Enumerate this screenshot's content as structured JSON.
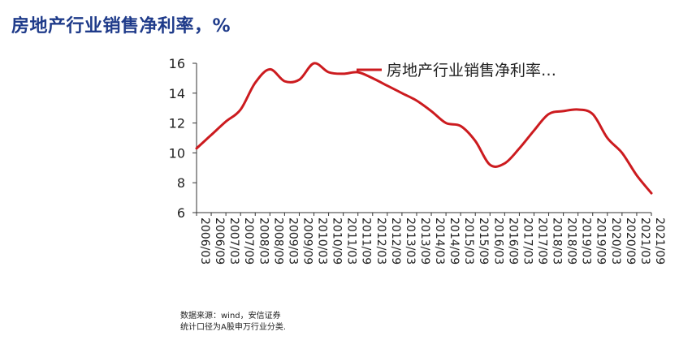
{
  "header": {
    "title": "房地产行业销售净利率，%"
  },
  "footnote": {
    "source": "数据来源：wind，安信证券",
    "note": "统计口径为A股申万行业分类."
  },
  "colors": {
    "line": "#cc1b1f",
    "title": "#1f3b8a",
    "axis": "#333333"
  },
  "chart_data": {
    "type": "line",
    "title": "房地产行业销售净利率，%",
    "xlabel": "",
    "ylabel": "",
    "ylim": [
      6,
      16
    ],
    "yticks": [
      6,
      8,
      10,
      12,
      14,
      16
    ],
    "grid": false,
    "legend_position": "top-right",
    "x": [
      "2006/03",
      "2006/09",
      "2007/03",
      "2007/09",
      "2008/03",
      "2008/09",
      "2009/03",
      "2009/09",
      "2010/03",
      "2010/09",
      "2011/03",
      "2011/09",
      "2012/03",
      "2012/09",
      "2013/03",
      "2013/09",
      "2014/03",
      "2014/09",
      "2015/03",
      "2015/09",
      "2016/03",
      "2016/09",
      "2017/03",
      "2017/09",
      "2018/03",
      "2018/09",
      "2019/03",
      "2019/09",
      "2020/03",
      "2020/09",
      "2021/03",
      "2021/09"
    ],
    "series": [
      {
        "name": "房地产行业销售净利率…",
        "values": [
          10.3,
          11.2,
          12.1,
          12.9,
          14.7,
          15.6,
          14.8,
          14.9,
          16.0,
          15.4,
          15.3,
          15.4,
          15.0,
          14.5,
          14.0,
          13.5,
          12.8,
          12.0,
          11.8,
          10.8,
          9.2,
          9.3,
          10.3,
          11.5,
          12.6,
          12.8,
          12.9,
          12.6,
          11.0,
          10.0,
          8.5,
          7.3
        ]
      }
    ]
  }
}
